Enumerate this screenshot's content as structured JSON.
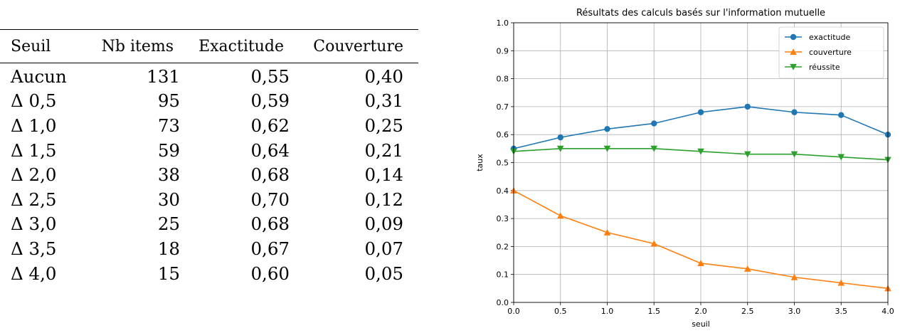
{
  "table": {
    "headers": [
      "Seuil",
      "Nb items",
      "Exactitude",
      "Couverture"
    ],
    "rows": [
      [
        "Aucun",
        "131",
        "0,55",
        "0,40"
      ],
      [
        "Δ 0,5",
        "95",
        "0,59",
        "0,31"
      ],
      [
        "Δ 1,0",
        "73",
        "0,62",
        "0,25"
      ],
      [
        "Δ 1,5",
        "59",
        "0,64",
        "0,21"
      ],
      [
        "Δ 2,0",
        "38",
        "0,68",
        "0,14"
      ],
      [
        "Δ 2,5",
        "30",
        "0,70",
        "0,12"
      ],
      [
        "Δ 3,0",
        "25",
        "0,68",
        "0,09"
      ],
      [
        "Δ 3,5",
        "18",
        "0,67",
        "0,07"
      ],
      [
        "Δ 4,0",
        "15",
        "0,60",
        "0,05"
      ]
    ]
  },
  "chart_data": {
    "type": "line",
    "title": "Résultats des calculs basés sur l'information mutuelle",
    "xlabel": "seuil",
    "ylabel": "taux",
    "xlim": [
      0.0,
      4.0
    ],
    "ylim": [
      0.0,
      1.0
    ],
    "xticks": [
      "0.0",
      "0.5",
      "1.0",
      "1.5",
      "2.0",
      "2.5",
      "3.0",
      "3.5",
      "4.0"
    ],
    "yticks": [
      "0.0",
      "0.1",
      "0.2",
      "0.3",
      "0.4",
      "0.5",
      "0.6",
      "0.7",
      "0.8",
      "0.9",
      "1.0"
    ],
    "grid": true,
    "legend_position": "top-right",
    "x": [
      0.0,
      0.5,
      1.0,
      1.5,
      2.0,
      2.5,
      3.0,
      3.5,
      4.0
    ],
    "series": [
      {
        "name": "exactitude",
        "color": "#1f77b4",
        "marker": "circle",
        "values": [
          0.55,
          0.59,
          0.62,
          0.64,
          0.68,
          0.7,
          0.68,
          0.67,
          0.6
        ]
      },
      {
        "name": "couverture",
        "color": "#ff7f0e",
        "marker": "triangle-up",
        "values": [
          0.4,
          0.31,
          0.25,
          0.21,
          0.14,
          0.12,
          0.09,
          0.07,
          0.05
        ]
      },
      {
        "name": "réussite",
        "color": "#2ca02c",
        "marker": "triangle-down",
        "values": [
          0.54,
          0.55,
          0.55,
          0.55,
          0.54,
          0.53,
          0.53,
          0.52,
          0.51
        ]
      }
    ]
  }
}
